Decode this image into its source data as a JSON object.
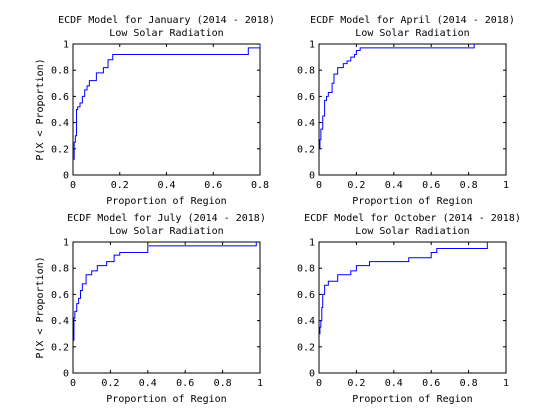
{
  "chart_data": [
    {
      "type": "line",
      "title": "ECDF Model for January (2014 - 2018)",
      "subtitle": "Low Solar Radiation",
      "xlabel": "Proportion of Region",
      "ylabel": "P(X < Proportion)",
      "xlim": [
        0,
        0.8
      ],
      "ylim": [
        0,
        1
      ],
      "xticks": [
        "0",
        "0.2",
        "0.4",
        "0.6",
        "0.8"
      ],
      "yticks": [
        "0",
        "0.2",
        "0.4",
        "0.6",
        "0.8",
        "1"
      ],
      "grid": false,
      "color": "#0000ff",
      "x": [
        0,
        0.005,
        0.01,
        0.015,
        0.02,
        0.03,
        0.04,
        0.05,
        0.06,
        0.07,
        0.1,
        0.13,
        0.15,
        0.17,
        0.75,
        0.8
      ],
      "y": [
        0.12,
        0.25,
        0.3,
        0.5,
        0.52,
        0.55,
        0.6,
        0.65,
        0.68,
        0.72,
        0.78,
        0.82,
        0.88,
        0.92,
        0.97,
        1.0
      ]
    },
    {
      "type": "line",
      "title": "ECDF Model for April (2014 - 2018)",
      "subtitle": "Low Solar Radiation",
      "xlabel": "Proportion of Region",
      "ylabel": "",
      "xlim": [
        0,
        1
      ],
      "ylim": [
        0,
        1
      ],
      "xticks": [
        "0",
        "0.2",
        "0.4",
        "0.6",
        "0.8",
        "1"
      ],
      "yticks": [
        "0",
        "0.2",
        "0.4",
        "0.6",
        "0.8",
        "1"
      ],
      "grid": false,
      "color": "#0000ff",
      "x": [
        0,
        0.005,
        0.01,
        0.02,
        0.03,
        0.04,
        0.05,
        0.07,
        0.08,
        0.1,
        0.13,
        0.15,
        0.17,
        0.19,
        0.2,
        0.22,
        0.83
      ],
      "y": [
        0.2,
        0.27,
        0.35,
        0.45,
        0.57,
        0.6,
        0.63,
        0.7,
        0.77,
        0.82,
        0.85,
        0.87,
        0.9,
        0.92,
        0.95,
        0.97,
        1.0
      ]
    },
    {
      "type": "line",
      "title": "ECDF Model for July (2014 - 2018)",
      "subtitle": "Low Solar Radiation",
      "xlabel": "Proportion of Region",
      "ylabel": "P(X < Proportion)",
      "xlim": [
        0,
        1
      ],
      "ylim": [
        0,
        1
      ],
      "xticks": [
        "0",
        "0.2",
        "0.4",
        "0.6",
        "0.8",
        "1"
      ],
      "yticks": [
        "0",
        "0.2",
        "0.4",
        "0.6",
        "0.8",
        "1"
      ],
      "grid": false,
      "color": "#0000ff",
      "x": [
        0,
        0.005,
        0.01,
        0.02,
        0.03,
        0.04,
        0.05,
        0.07,
        0.1,
        0.13,
        0.18,
        0.22,
        0.25,
        0.4,
        0.98
      ],
      "y": [
        0.25,
        0.42,
        0.47,
        0.53,
        0.57,
        0.63,
        0.68,
        0.75,
        0.78,
        0.82,
        0.85,
        0.9,
        0.92,
        0.97,
        1.0
      ]
    },
    {
      "type": "line",
      "title": "ECDF Model for October (2014 - 2018)",
      "subtitle": "Low Solar Radiation",
      "xlabel": "Proportion of Region",
      "ylabel": "",
      "xlim": [
        0,
        1
      ],
      "ylim": [
        0,
        1
      ],
      "xticks": [
        "0",
        "0.2",
        "0.4",
        "0.6",
        "0.8",
        "1"
      ],
      "yticks": [
        "0",
        "0.2",
        "0.4",
        "0.6",
        "0.8",
        "1"
      ],
      "grid": false,
      "color": "#0000ff",
      "x": [
        0,
        0.005,
        0.01,
        0.015,
        0.02,
        0.03,
        0.05,
        0.1,
        0.17,
        0.2,
        0.27,
        0.48,
        0.6,
        0.63,
        0.9
      ],
      "y": [
        0.3,
        0.35,
        0.4,
        0.5,
        0.6,
        0.67,
        0.7,
        0.75,
        0.78,
        0.82,
        0.85,
        0.88,
        0.92,
        0.95,
        1.0
      ]
    }
  ]
}
